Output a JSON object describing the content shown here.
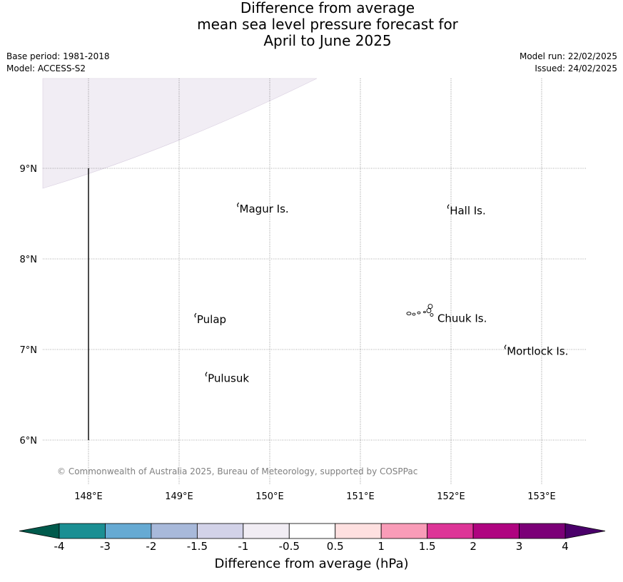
{
  "title": {
    "line1": "Difference from average",
    "line2": "mean sea level pressure forecast for",
    "line3": "April to June 2025"
  },
  "info": {
    "base_period": "Base period: 1981-2018",
    "model": "Model: ACCESS-S2",
    "model_run": "Model run: 22/02/2025",
    "issued": "Issued: 24/02/2025"
  },
  "map": {
    "lon_ticks": [
      {
        "value": 148,
        "label": "148°E"
      },
      {
        "value": 149,
        "label": "149°E"
      },
      {
        "value": 150,
        "label": "150°E"
      },
      {
        "value": 151,
        "label": "151°E"
      },
      {
        "value": 152,
        "label": "152°E"
      },
      {
        "value": 153,
        "label": "153°E"
      }
    ],
    "lat_ticks": [
      {
        "value": 9,
        "label": "9°N"
      },
      {
        "value": 8,
        "label": "8°N"
      },
      {
        "value": 7,
        "label": "7°N"
      },
      {
        "value": 6,
        "label": "6°N"
      }
    ],
    "extent": {
      "lon_min": 147.5,
      "lon_max": 153.5,
      "lat_min": 5.5,
      "lat_max": 10.0
    },
    "places": [
      {
        "name": "Magur Is.",
        "lon": 149.65,
        "lat": 8.55
      },
      {
        "name": "Hall Is.",
        "lon": 151.97,
        "lat": 8.53
      },
      {
        "name": "Pulap",
        "lon": 149.18,
        "lat": 7.33
      },
      {
        "name": "Chuuk Is.",
        "lon": 151.85,
        "lat": 7.35
      },
      {
        "name": "Mortlock Is.",
        "lon": 152.6,
        "lat": 6.98
      },
      {
        "name": "Pulusuk",
        "lon": 149.3,
        "lat": 6.68
      }
    ],
    "shaded_region": {
      "category": "-1 to -0.5",
      "color": "#f1edf4"
    },
    "copyright": "© Commonwealth of Australia 2025, Bureau of Meteorology, supported by COSPPac"
  },
  "colorbar": {
    "label": "Difference from average (hPa)",
    "ticks": [
      "-4",
      "-3",
      "-2",
      "-1.5",
      "-1",
      "-0.5",
      "0.5",
      "1",
      "1.5",
      "2",
      "3",
      "4"
    ],
    "colors": [
      "#1b8f93",
      "#66aad3",
      "#a8b9da",
      "#d2d2e8",
      "#f1edf4",
      "#ffffff",
      "#fee0e0",
      "#f99cb8",
      "#dd3597",
      "#af0480",
      "#7b0077"
    ],
    "low_extend_color": "#005a4c",
    "high_extend_color": "#4a006a"
  }
}
